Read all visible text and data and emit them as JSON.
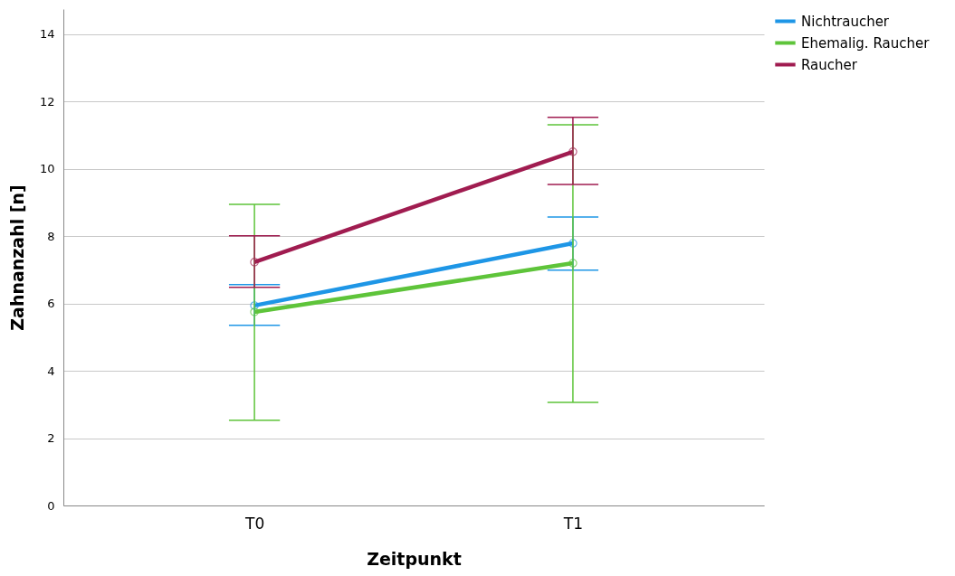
{
  "chart_data": {
    "type": "line",
    "xlabel": "Zeitpunkt",
    "ylabel": "Zahnanzahl [n]",
    "categories": [
      "T0",
      "T1"
    ],
    "ylim": [
      0,
      14.75
    ],
    "yticks": [
      0,
      2,
      4,
      6,
      8,
      10,
      12,
      14
    ],
    "grid": "y",
    "legend": "top right",
    "marker": "circle",
    "line_style": "solid",
    "series": [
      {
        "name": "Nichtraucher",
        "color": "#1e96e6",
        "values": [
          5.94,
          7.79
        ],
        "errors": [
          [
            5.35,
            6.56
          ],
          [
            6.99,
            8.57
          ]
        ]
      },
      {
        "name": "Ehemalig. Raucher",
        "color": "#5ec43a",
        "values": [
          5.75,
          7.2
        ],
        "errors": [
          [
            2.53,
            8.95
          ],
          [
            3.06,
            11.31
          ]
        ]
      },
      {
        "name": "Raucher",
        "color": "#a01c50",
        "values": [
          7.23,
          10.51
        ],
        "errors": [
          [
            6.48,
            8.01
          ],
          [
            9.54,
            11.53
          ]
        ]
      }
    ]
  }
}
